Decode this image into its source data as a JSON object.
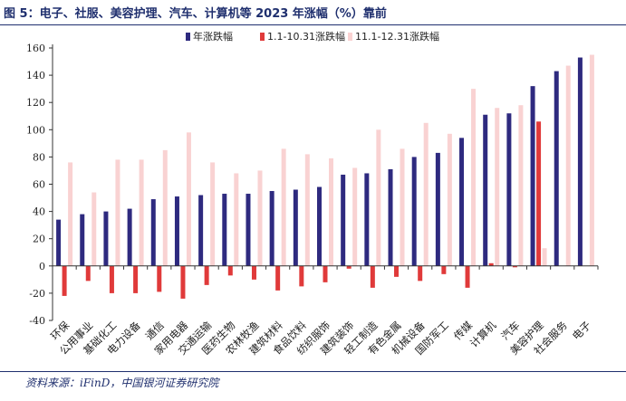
{
  "figure": {
    "title": "图 5：电子、社服、美容护理、汽车、计算机等 2023 年涨幅（%）靠前",
    "source": "资料来源：iFinD，中国银河证券研究院"
  },
  "chart_data": {
    "type": "bar",
    "categories": [
      "环保",
      "公用事业",
      "基础化工",
      "电力设备",
      "通信",
      "家用电器",
      "交通运输",
      "医药生物",
      "农林牧渔",
      "建筑材料",
      "食品饮料",
      "纺织服饰",
      "建筑装饰",
      "轻工制造",
      "有色金属",
      "机械设备",
      "国防军工",
      "传媒",
      "计算机",
      "汽车",
      "美容护理",
      "社会服务",
      "电子"
    ],
    "series": [
      {
        "name": "年涨跌幅",
        "color": "#2e2a7f",
        "values": [
          34,
          38,
          40,
          42,
          49,
          51,
          52,
          53,
          53,
          55,
          56,
          58,
          67,
          68,
          71,
          80,
          83,
          94,
          111,
          112,
          132,
          143,
          153
        ]
      },
      {
        "name": "1.1-10.31涨跌幅",
        "color": "#e03a3a",
        "values": [
          -22,
          -11,
          -20,
          -20,
          -19,
          -24,
          -14,
          -7,
          -10,
          -18,
          -15,
          -12,
          -2,
          -16,
          -8,
          -11,
          -6,
          -16,
          2,
          -1,
          106,
          0,
          0
        ]
      },
      {
        "name": "11.1-12.31涨跌幅",
        "color": "#f9d2d2",
        "values": [
          76,
          54,
          78,
          78,
          85,
          98,
          76,
          68,
          70,
          86,
          82,
          79,
          72,
          100,
          86,
          105,
          97,
          130,
          116,
          118,
          13,
          147,
          155
        ]
      }
    ],
    "ylim": [
      -40,
      160
    ],
    "yticks": [
      -40,
      -20,
      0,
      20,
      40,
      60,
      80,
      100,
      120,
      140,
      160
    ],
    "legend_position": "top-center",
    "grid": false
  }
}
